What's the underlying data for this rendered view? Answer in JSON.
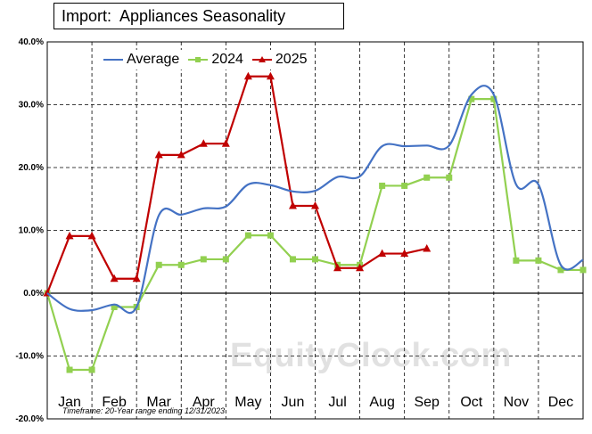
{
  "title": "Import:  Appliances Seasonality",
  "footnote": "Timeframe: 20-Year range ending 12/31/2023",
  "watermark": "EquityClock.com",
  "chart_data": {
    "type": "line",
    "y_unit": "%",
    "ylim": [
      -20,
      40
    ],
    "y_ticks": [
      "40.0%",
      "30.0%",
      "20.0%",
      "10.0%",
      "0.0%",
      "-10.0%",
      "-20.0%"
    ],
    "month_labels": [
      "Jan",
      "Feb",
      "Mar",
      "Apr",
      "May",
      "Jun",
      "Jul",
      "Aug",
      "Sep",
      "Oct",
      "Nov",
      "Dec"
    ],
    "grid": "dashed horizontal at 10% steps, dashed vertical at month boundaries",
    "legend_position": "top-left",
    "series": [
      {
        "name": "Average",
        "color": "#4472c4",
        "marker": "none",
        "smooth": true,
        "x": [
          0,
          0.5,
          1,
          1.5,
          2,
          2.5,
          3,
          3.5,
          4,
          4.5,
          5,
          5.5,
          6,
          6.5,
          7,
          7.5,
          8,
          8.5,
          9,
          9.5,
          10,
          10.5,
          11,
          11.5,
          12
        ],
        "values": [
          0,
          -2.5,
          -2.7,
          -1.8,
          -2.2,
          12.4,
          12.5,
          13.5,
          13.8,
          17.3,
          17.2,
          16.2,
          16.3,
          18.5,
          18.6,
          23.4,
          23.4,
          23.5,
          23.5,
          31.6,
          31.6,
          17.3,
          17.3,
          4.5,
          5.3
        ]
      },
      {
        "name": "2024",
        "color": "#92d050",
        "marker": "square",
        "smooth": false,
        "x": [
          0,
          0.5,
          1,
          1.5,
          2,
          2.5,
          3,
          3.5,
          4,
          4.5,
          5,
          5.5,
          6,
          6.5,
          7,
          7.5,
          8,
          8.5,
          9,
          9.5,
          10,
          10.5,
          11,
          11.5,
          12
        ],
        "values": [
          0,
          -12.2,
          -12.2,
          -2.2,
          -2.2,
          4.5,
          4.5,
          5.4,
          5.4,
          9.2,
          9.2,
          5.4,
          5.4,
          4.5,
          4.5,
          17.1,
          17.1,
          18.4,
          18.4,
          30.9,
          30.9,
          5.2,
          5.2,
          3.7,
          3.7
        ]
      },
      {
        "name": "2025",
        "color": "#c00000",
        "marker": "triangle",
        "smooth": false,
        "x": [
          0,
          0.5,
          1,
          1.5,
          2,
          2.5,
          3,
          3.5,
          4,
          4.5,
          5,
          5.5,
          6,
          6.5,
          7,
          7.5,
          8,
          8.5
        ],
        "values": [
          0,
          9.1,
          9.1,
          2.3,
          2.3,
          22.0,
          22.0,
          23.8,
          23.8,
          34.5,
          34.5,
          13.9,
          13.9,
          4.0,
          4.0,
          6.3,
          6.3,
          7.1
        ]
      }
    ]
  }
}
